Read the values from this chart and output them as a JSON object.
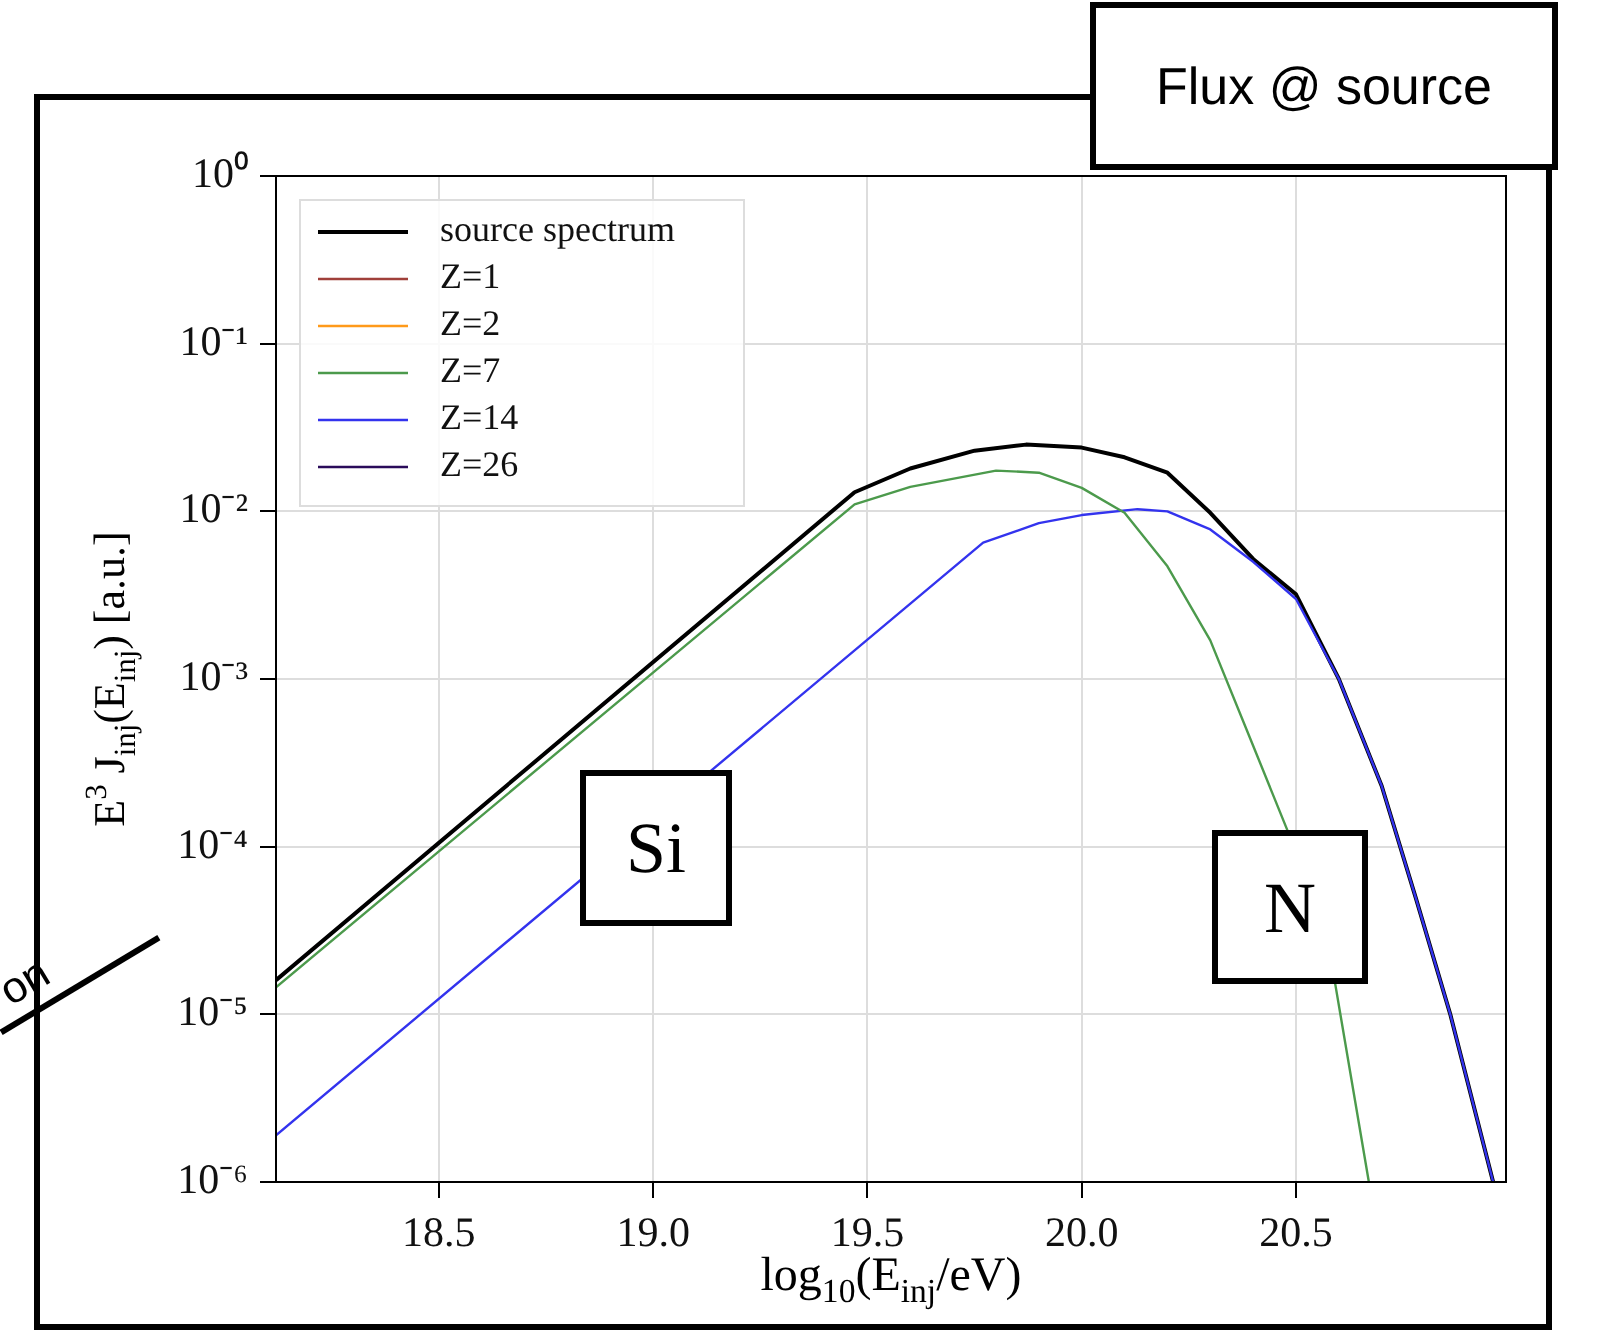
{
  "chart_data": {
    "type": "line",
    "title": "Flux @ source",
    "xlabel": "log$_{10}$(E$_{inj}$/eV)",
    "ylabel": "E$^{3}$ J$_{inj}$(E$_{inj}$) [a.u.]",
    "annotations": [
      "Si",
      "N",
      "on"
    ],
    "log": "y",
    "grid": true,
    "legend": "top left",
    "xlim": [
      18.12,
      20.99
    ],
    "xticks": [
      18.5,
      {
        "value": 19,
        "label": "19.0"
      },
      19.5,
      {
        "value": 20,
        "label": "20.0"
      },
      20.5
    ],
    "ylim": [
      1e-06,
      1
    ],
    "yticks": [
      {
        "value": 1e-06,
        "label": "10⁻⁶"
      },
      {
        "value": 1e-05,
        "label": "10⁻⁵"
      },
      {
        "value": 0.0001,
        "label": "10⁻⁴"
      },
      {
        "value": 0.001,
        "label": "10⁻³"
      },
      {
        "value": 0.01,
        "label": "10⁻²"
      },
      {
        "value": 0.1,
        "label": "10⁻¹"
      },
      {
        "value": 1,
        "label": "10⁰"
      }
    ],
    "series": [
      {
        "name": "source spectrum",
        "color": "#000000",
        "x": [
          18.12,
          19.47,
          19.6,
          19.75,
          19.87,
          20.0,
          20.1,
          20.2,
          20.3,
          20.4,
          20.5,
          20.6,
          20.7,
          20.78,
          20.86,
          20.96
        ],
        "values": [
          1.6e-05,
          0.013,
          0.018,
          0.023,
          0.025,
          0.024,
          0.021,
          0.017,
          0.0098,
          0.0052,
          0.0032,
          0.001,
          0.00023,
          4.9e-05,
          1e-05,
          1e-06
        ]
      },
      {
        "name": "Z=1",
        "color": "#a0403a"
      },
      {
        "name": "Z=2",
        "color": "#ff9a1a"
      },
      {
        "name": "Z=7",
        "color": "#4c9a4c",
        "x": [
          18.12,
          19.47,
          19.6,
          19.8,
          19.9,
          20.0,
          20.1,
          20.2,
          20.3,
          20.4,
          20.48,
          20.59,
          20.67
        ],
        "values": [
          1.45e-05,
          0.011,
          0.014,
          0.0175,
          0.017,
          0.0138,
          0.0098,
          0.0047,
          0.0017,
          0.0004,
          0.000125,
          1.6e-05,
          1e-06
        ]
      },
      {
        "name": "Z=14",
        "color": "#3333ee",
        "x": [
          18.12,
          19.77,
          19.9,
          20.0,
          20.13,
          20.2,
          20.3,
          20.4,
          20.5,
          20.6,
          20.7,
          20.78,
          20.86,
          20.96
        ],
        "values": [
          1.9e-06,
          0.0065,
          0.0085,
          0.0095,
          0.0103,
          0.01,
          0.0078,
          0.005,
          0.003,
          0.001,
          0.00023,
          4.9e-05,
          1e-05,
          1e-06
        ]
      },
      {
        "name": "Z=26",
        "color": "#2a0b5a"
      }
    ]
  }
}
